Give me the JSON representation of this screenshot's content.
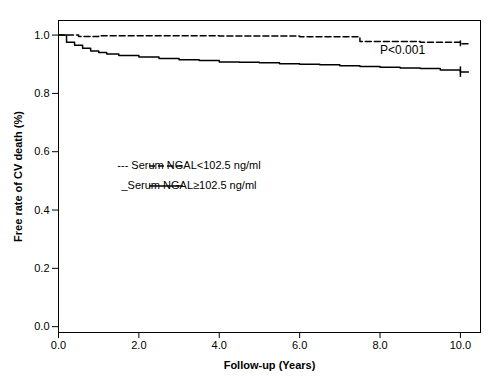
{
  "chart_data": {
    "type": "step",
    "xlabel": "Follow-up (Years)",
    "ylabel": "Free rate of CV death (%)",
    "xlim": [
      0,
      10.5
    ],
    "ylim": [
      -0.02,
      1.05
    ],
    "xticks": [
      {
        "value": 0,
        "label": "0.0"
      },
      {
        "value": 2.0,
        "label": "2.0"
      },
      {
        "value": 4.0,
        "label": "4.0"
      },
      {
        "value": 6.0,
        "label": "6.0"
      },
      {
        "value": 8.0,
        "label": "8.0"
      },
      {
        "value": 10.0,
        "label": "10.0"
      }
    ],
    "yticks": [
      {
        "value": 0.0,
        "label": "0.0"
      },
      0.2,
      0.4,
      0.6,
      0.8,
      {
        "value": 1.0,
        "label": "1.0"
      }
    ],
    "grid": false,
    "legend": "center",
    "annotations": [
      {
        "text": "P<0.001",
        "x": 8.0,
        "y": 0.935
      }
    ],
    "series": [
      {
        "name": "--- Serum NGAL<102.5 ng/ml",
        "color": "#000000",
        "line_style": "dashed",
        "x": [
          0,
          0.3,
          0.5,
          1.0,
          1.5,
          2.0,
          3.0,
          4.0,
          5.0,
          6.0,
          7.0,
          7.5,
          8.0,
          9.0,
          9.5,
          10.0,
          10.2
        ],
        "values": [
          1.0,
          1.0,
          0.995,
          0.998,
          0.998,
          0.998,
          0.998,
          0.997,
          0.997,
          0.994,
          0.994,
          0.978,
          0.978,
          0.975,
          0.975,
          0.97,
          0.97
        ],
        "ci": {
          "x": 10.0,
          "low": 0.96,
          "high": 0.98
        }
      },
      {
        "name": "_Serum NGAL≥102.5 ng/ml",
        "color": "#000000",
        "line_style": "solid",
        "x": [
          0,
          0.2,
          0.4,
          0.6,
          0.8,
          1.0,
          1.2,
          1.5,
          2.0,
          2.5,
          3.0,
          3.5,
          4.0,
          4.5,
          5.0,
          5.5,
          6.0,
          6.5,
          7.0,
          7.5,
          8.0,
          8.5,
          9.0,
          9.5,
          10.0,
          10.2
        ],
        "values": [
          1.0,
          0.975,
          0.965,
          0.955,
          0.945,
          0.94,
          0.935,
          0.93,
          0.925,
          0.92,
          0.915,
          0.913,
          0.908,
          0.907,
          0.905,
          0.902,
          0.9,
          0.898,
          0.895,
          0.892,
          0.89,
          0.887,
          0.885,
          0.88,
          0.873,
          0.873
        ],
        "ci": {
          "x": 10.0,
          "low": 0.855,
          "high": 0.891
        }
      }
    ]
  }
}
